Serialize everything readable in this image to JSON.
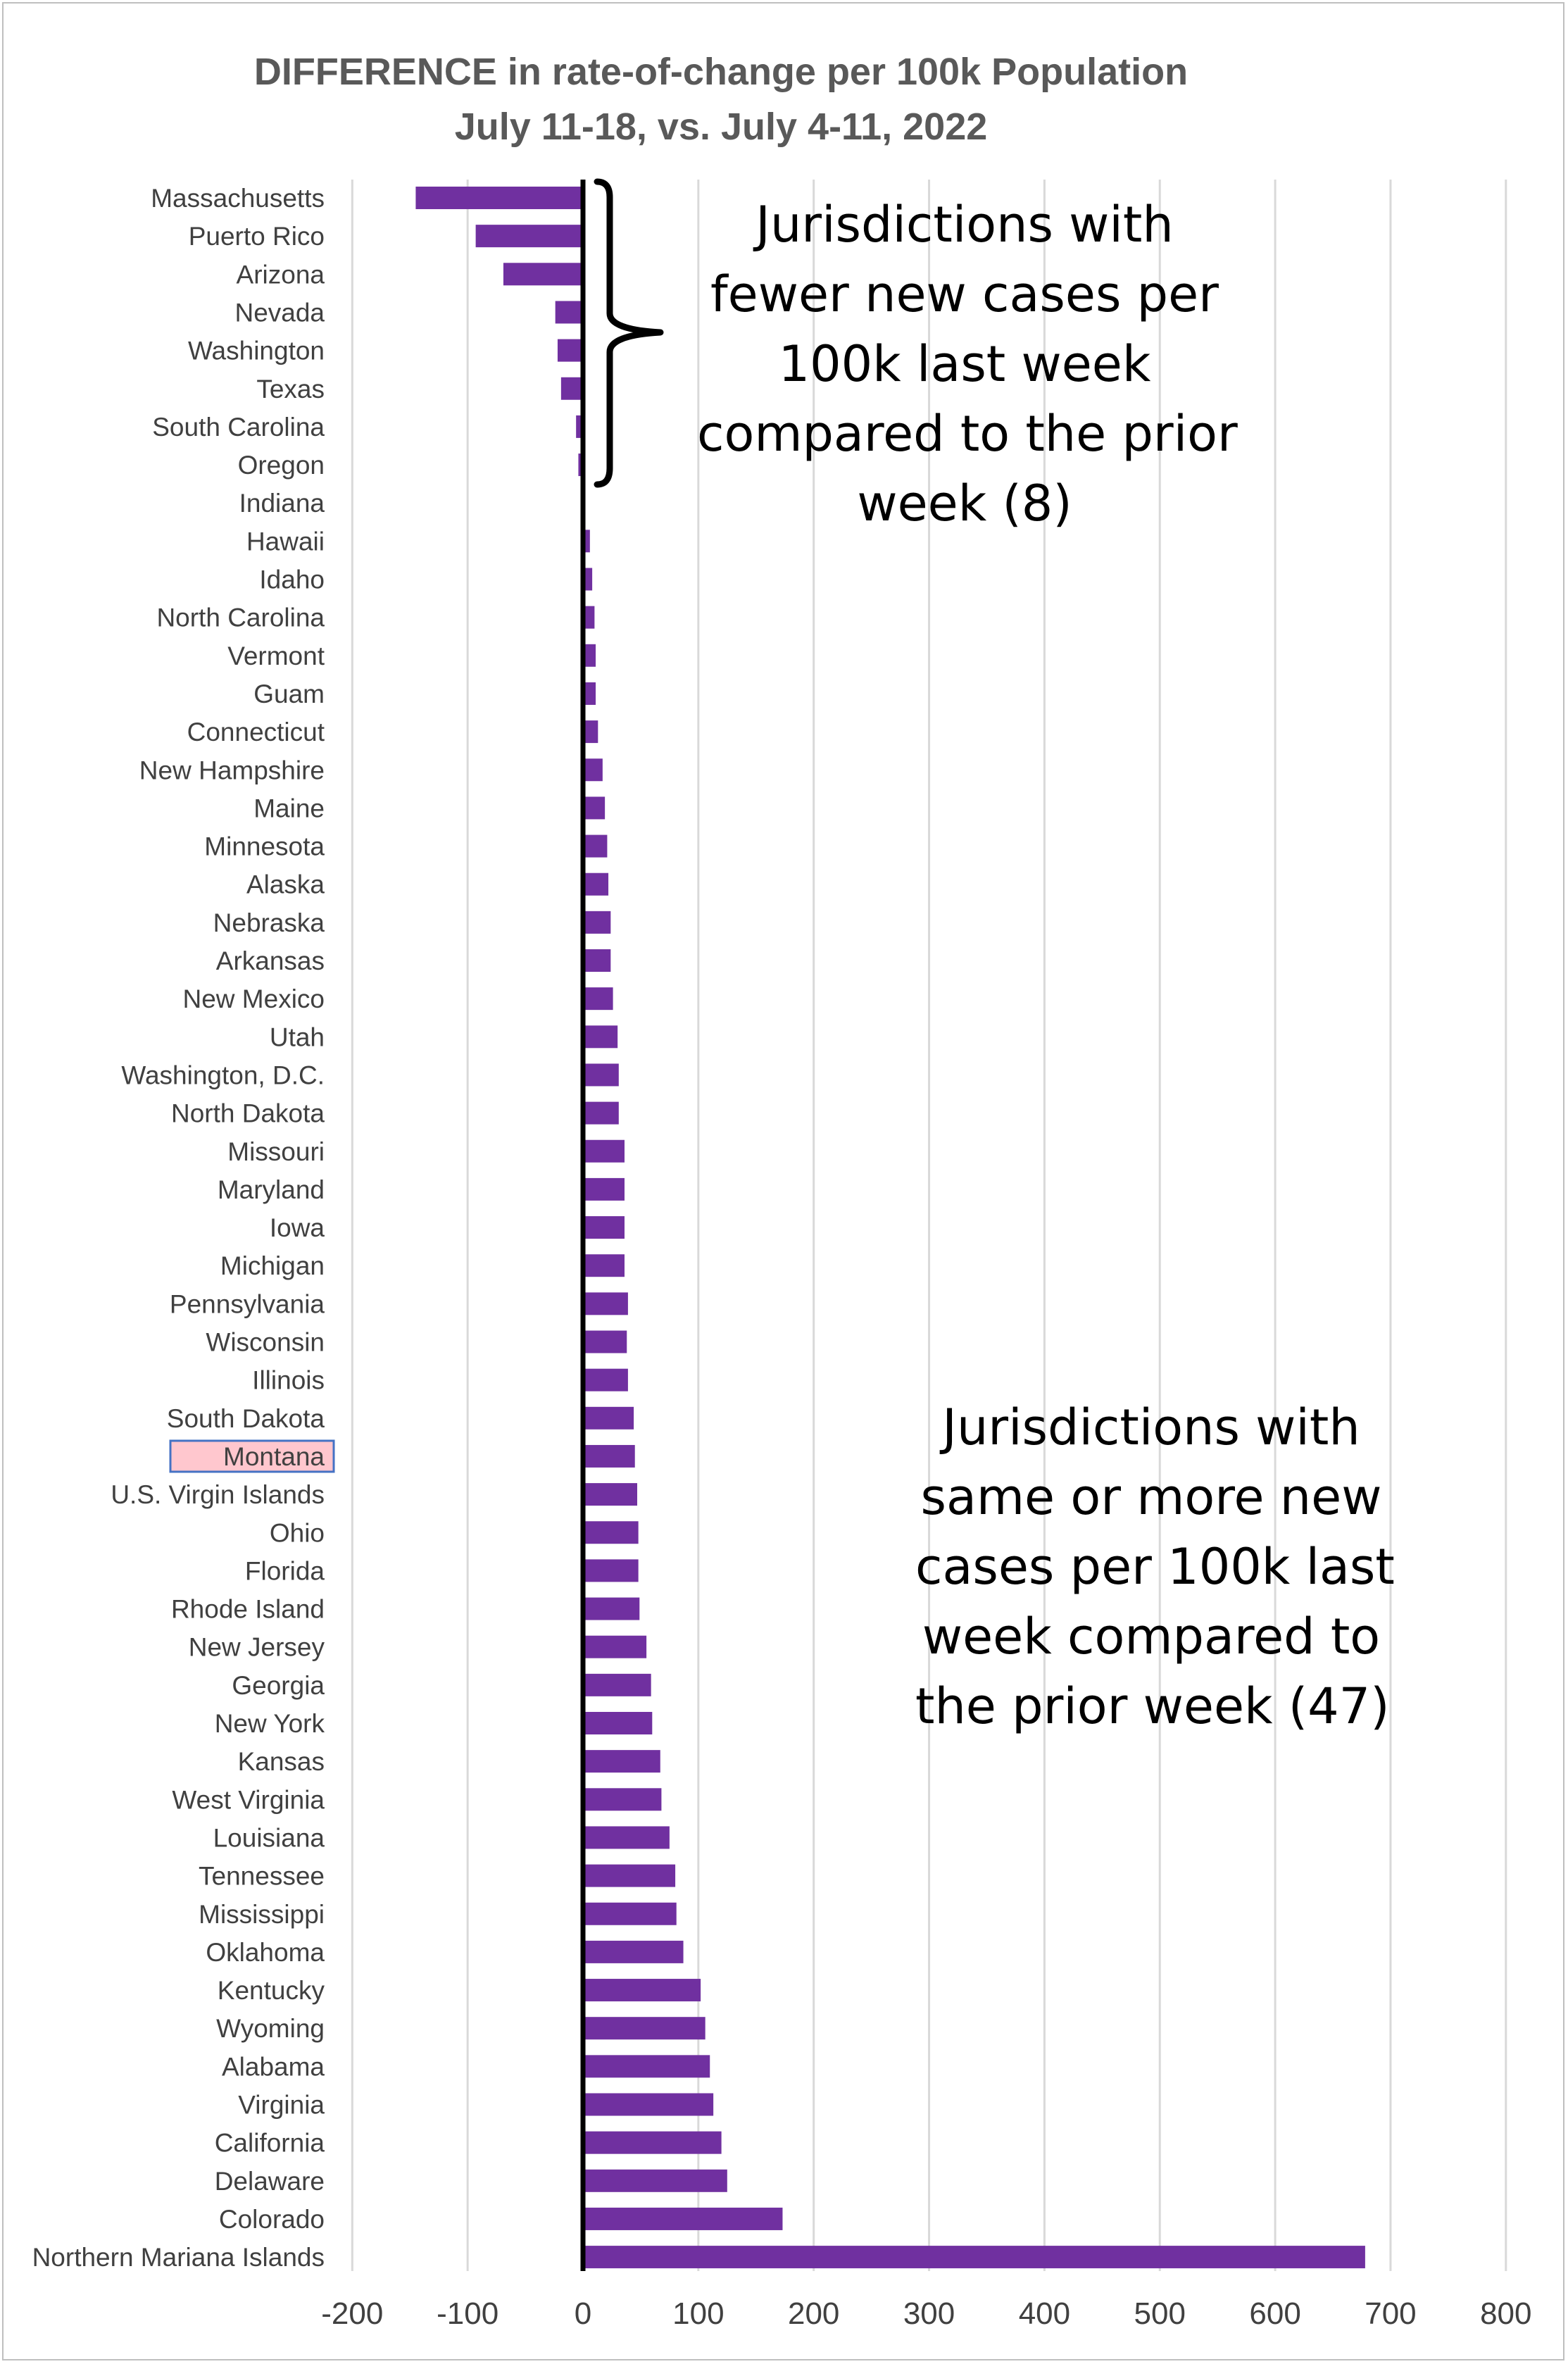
{
  "chart_data": {
    "type": "bar",
    "orientation": "horizontal",
    "title": "DIFFERENCE in rate-of-change per 100k Population",
    "subtitle": "July 11-18, vs. July 4-11, 2022",
    "xlabel": "",
    "ylabel": "",
    "xlim": [
      -200,
      800
    ],
    "xticks": [
      -200,
      -100,
      0,
      100,
      200,
      300,
      400,
      500,
      600,
      700,
      800
    ],
    "grid": true,
    "bar_color": "#7030a0",
    "highlight_category": "Montana",
    "highlight_fill": "#ffc7ce",
    "highlight_border": "#4472c4",
    "categories": [
      "Massachusetts",
      "Puerto Rico",
      "Arizona",
      "Nevada",
      "Washington",
      "Texas",
      "South Carolina",
      "Oregon",
      "Indiana",
      "Hawaii",
      "Idaho",
      "North Carolina",
      "Vermont",
      "Guam",
      "Connecticut",
      "New Hampshire",
      "Maine",
      "Minnesota",
      "Alaska",
      "Nebraska",
      "Arkansas",
      "New Mexico",
      "Utah",
      "Washington, D.C.",
      "North Dakota",
      "Missouri",
      "Maryland",
      "Iowa",
      "Michigan",
      "Pennsylvania",
      "Wisconsin",
      "Illinois",
      "South Dakota",
      "Montana",
      "U.S. Virgin Islands",
      "Ohio",
      "Florida",
      "Rhode Island",
      "New Jersey",
      "Georgia",
      "New York",
      "Kansas",
      "West Virginia",
      "Louisiana",
      "Tennessee",
      "Mississippi",
      "Oklahoma",
      "Kentucky",
      "Wyoming",
      "Alabama",
      "Virginia",
      "California",
      "Delaware",
      "Colorado",
      "Northern Mariana Islands"
    ],
    "values": [
      -145,
      -93,
      -69,
      -24,
      -22,
      -19,
      -6,
      -4,
      0,
      6,
      8,
      10,
      11,
      11,
      13,
      17,
      19,
      21,
      22,
      24,
      24,
      26,
      30,
      31,
      31,
      36,
      36,
      36,
      36,
      39,
      38,
      39,
      44,
      45,
      47,
      48,
      48,
      49,
      55,
      59,
      60,
      67,
      68,
      75,
      80,
      81,
      87,
      102,
      106,
      110,
      113,
      120,
      125,
      173,
      678
    ]
  },
  "annotations": {
    "fewer": [
      "Jurisdictions with",
      "fewer new cases per",
      "100k last week",
      "compared to the prior",
      "week (8)"
    ],
    "more": [
      "Jurisdictions with",
      "same or more new",
      "cases per 100k last",
      "week compared to",
      "the prior week (47)"
    ]
  }
}
